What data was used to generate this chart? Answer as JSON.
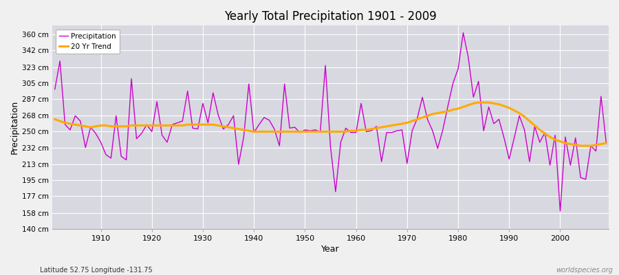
{
  "title": "Yearly Total Precipitation 1901 - 2009",
  "xlabel": "Year",
  "ylabel": "Precipitation",
  "subtitle": "Latitude 52.75 Longitude -131.75",
  "watermark": "worldspecies.org",
  "fig_bg_color": "#f0f0f0",
  "plot_bg_color": "#d8d8e0",
  "grid_color": "#ffffff",
  "precip_color": "#cc00cc",
  "trend_color": "#ffaa00",
  "ylim": [
    140,
    370
  ],
  "ytick_values": [
    140,
    158,
    177,
    195,
    213,
    232,
    250,
    268,
    287,
    305,
    323,
    342,
    360
  ],
  "xtick_values": [
    1910,
    1920,
    1930,
    1940,
    1950,
    1960,
    1970,
    1980,
    1990,
    2000
  ],
  "years": [
    1901,
    1902,
    1903,
    1904,
    1905,
    1906,
    1907,
    1908,
    1909,
    1910,
    1911,
    1912,
    1913,
    1914,
    1915,
    1916,
    1917,
    1918,
    1919,
    1920,
    1921,
    1922,
    1923,
    1924,
    1925,
    1926,
    1927,
    1928,
    1929,
    1930,
    1931,
    1932,
    1933,
    1934,
    1935,
    1936,
    1937,
    1938,
    1939,
    1940,
    1941,
    1942,
    1943,
    1944,
    1945,
    1946,
    1947,
    1948,
    1949,
    1950,
    1951,
    1952,
    1953,
    1954,
    1955,
    1956,
    1957,
    1958,
    1959,
    1960,
    1961,
    1962,
    1963,
    1964,
    1965,
    1966,
    1967,
    1968,
    1969,
    1970,
    1971,
    1972,
    1973,
    1974,
    1975,
    1976,
    1977,
    1978,
    1979,
    1980,
    1981,
    1982,
    1983,
    1984,
    1985,
    1986,
    1987,
    1988,
    1989,
    1990,
    1991,
    1992,
    1993,
    1994,
    1995,
    1996,
    1997,
    1998,
    1999,
    2000,
    2001,
    2002,
    2003,
    2004,
    2005,
    2006,
    2007,
    2008,
    2009
  ],
  "precip": [
    298,
    330,
    258,
    252,
    268,
    262,
    232,
    255,
    248,
    238,
    224,
    220,
    268,
    222,
    218,
    310,
    242,
    248,
    258,
    250,
    284,
    246,
    238,
    258,
    260,
    262,
    296,
    254,
    253,
    282,
    260,
    294,
    269,
    253,
    258,
    268,
    213,
    244,
    304,
    249,
    258,
    266,
    263,
    253,
    234,
    304,
    254,
    255,
    249,
    252,
    251,
    252,
    250,
    325,
    233,
    182,
    238,
    254,
    249,
    249,
    282,
    250,
    251,
    256,
    216,
    249,
    249,
    251,
    252,
    214,
    251,
    265,
    289,
    264,
    251,
    231,
    252,
    279,
    305,
    321,
    362,
    334,
    289,
    307,
    251,
    278,
    259,
    264,
    243,
    219,
    243,
    268,
    252,
    216,
    256,
    238,
    249,
    212,
    246,
    160,
    244,
    212,
    243,
    198,
    196,
    234,
    228,
    290,
    238
  ],
  "trend": [
    264,
    262,
    260,
    259,
    258,
    257,
    256,
    255,
    256,
    257,
    257,
    256,
    256,
    256,
    256,
    257,
    257,
    257,
    257,
    257,
    257,
    257,
    257,
    257,
    257,
    257,
    258,
    258,
    258,
    258,
    258,
    258,
    257,
    256,
    255,
    254,
    253,
    252,
    251,
    250,
    250,
    250,
    250,
    250,
    250,
    250,
    250,
    250,
    250,
    250,
    250,
    250,
    250,
    250,
    250,
    250,
    250,
    250,
    251,
    251,
    252,
    252,
    253,
    254,
    255,
    256,
    257,
    258,
    259,
    260,
    262,
    264,
    266,
    268,
    270,
    271,
    272,
    273,
    275,
    276,
    278,
    280,
    282,
    283,
    283,
    283,
    282,
    281,
    279,
    277,
    274,
    271,
    267,
    262,
    257,
    252,
    248,
    244,
    241,
    239,
    237,
    236,
    235,
    234,
    234,
    234,
    235,
    236,
    237
  ]
}
